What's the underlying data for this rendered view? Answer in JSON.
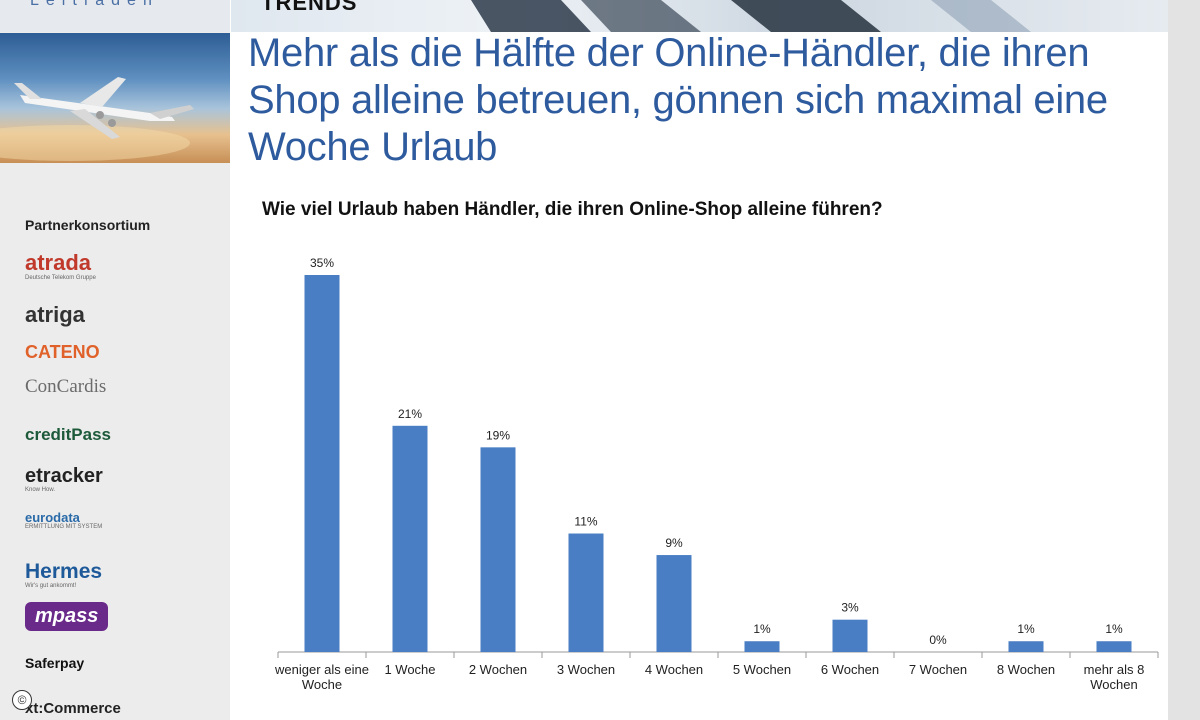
{
  "brand": {
    "tagline": "Leitfaden"
  },
  "header": {
    "section": "TRENDS"
  },
  "headline": "Mehr als die Hälfte der Online-Händler, die ihren Shop alleine betreuen, gönnen sich maximal eine Woche Urlaub",
  "sidebar": {
    "title": "Partnerkonsortium",
    "partners": [
      {
        "name": "atrada",
        "sub": "Deutsche Telekom Gruppe",
        "color": "#c0392b"
      },
      {
        "name": "atriga",
        "color": "#333333"
      },
      {
        "name": "CATENO",
        "color": "#e0622a"
      },
      {
        "name": "ConCardis",
        "color": "#6b6b6b"
      },
      {
        "name": "creditPass",
        "color": "#1d5a3a"
      },
      {
        "name": "etracker",
        "sub": "Know How.",
        "color": "#222222"
      },
      {
        "name": "eurodata",
        "sub": "ERMITTLUNG MIT SYSTEM",
        "color": "#2a6aa8"
      },
      {
        "name": "Hermes",
        "sub": "Wir's gut ankommt!",
        "color": "#1e5a9a"
      },
      {
        "name": "mpass",
        "color": "#6a2a8a"
      },
      {
        "name": "Saferpay",
        "color": "#111111"
      },
      {
        "name": "xt:Commerce",
        "color": "#222222"
      }
    ],
    "copyright": "©"
  },
  "chart_data": {
    "type": "bar",
    "title": "Wie viel Urlaub haben Händler, die ihren Online-Shop alleine führen?",
    "categories": [
      "weniger als eine Woche",
      "1 Woche",
      "2 Wochen",
      "3 Wochen",
      "4 Wochen",
      "5 Wochen",
      "6 Wochen",
      "7 Wochen",
      "8 Wochen",
      "mehr als 8 Wochen"
    ],
    "values": [
      35,
      21,
      19,
      11,
      9,
      1,
      3,
      0,
      1,
      1
    ],
    "data_labels": [
      "35%",
      "21%",
      "19%",
      "11%",
      "9%",
      "1%",
      "3%",
      "0%",
      "1%",
      "1%"
    ],
    "ylim": [
      0,
      35
    ],
    "bar_color": "#4a7ec4",
    "grid": false,
    "legend": "none"
  }
}
